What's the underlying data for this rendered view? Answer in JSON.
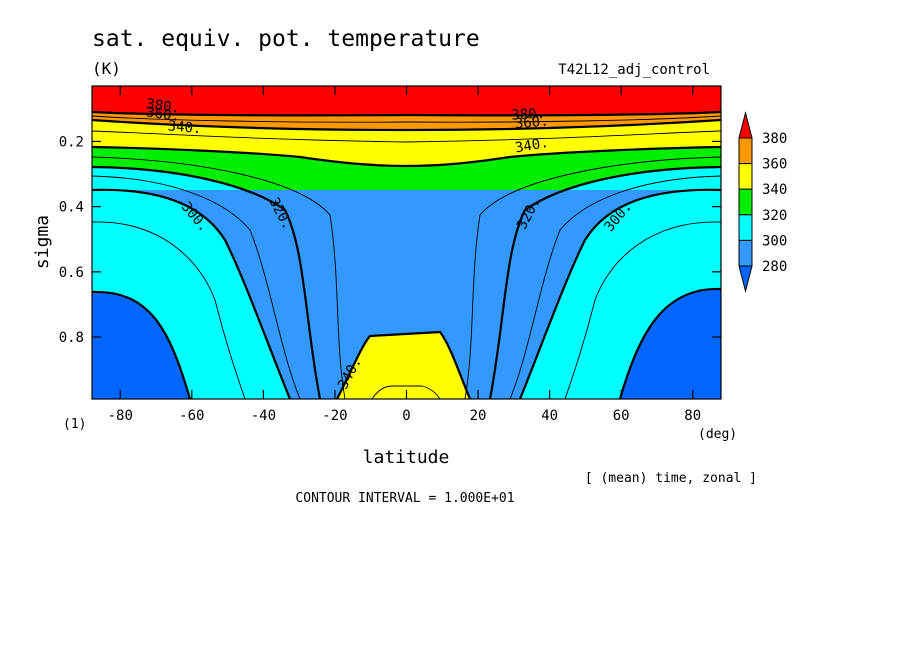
{
  "chart_data": {
    "type": "heatmap",
    "title": "sat. equiv. pot. temperature",
    "units": "(K)",
    "experiment": "T42L12_adj_control",
    "xlabel": "latitude",
    "ylabel": "sigma",
    "x_units": "(deg)",
    "y_units": "(1)",
    "averaging_note": "[ (mean) time, zonal ]",
    "contour_interval_text": "CONTOUR INTERVAL = 1.000E+01",
    "xlim": [
      -87.9,
      87.9
    ],
    "ylim": [
      0.03,
      0.99
    ],
    "y_inverted": true,
    "x_ticks": [
      -80,
      -60,
      -40,
      -20,
      0,
      20,
      40,
      60,
      80
    ],
    "x_tick_labels": [
      "-80",
      "-60",
      "-40",
      "-20",
      "0",
      "20",
      "40",
      "60",
      "80"
    ],
    "y_ticks": [
      0.2,
      0.4,
      0.6,
      0.8
    ],
    "y_tick_labels": [
      "0.2",
      "0.4",
      "0.6",
      "0.8"
    ],
    "levels": [
      280,
      300,
      320,
      340,
      360,
      380
    ],
    "colorbar": {
      "labels": [
        "380",
        "360",
        "340",
        "320",
        "300",
        "280"
      ],
      "colors": [
        "#ff0000",
        "#ff9900",
        "#ffff00",
        "#00ee00",
        "#00ffff",
        "#3399ff",
        "#0066ff"
      ]
    },
    "contour_labels": [
      {
        "text": "380",
        "x": -68,
        "y": 0.09,
        "angle": 8
      },
      {
        "text": "360",
        "x": -68,
        "y": 0.115,
        "angle": 8
      },
      {
        "text": "340",
        "x": -62,
        "y": 0.155,
        "angle": 5
      },
      {
        "text": "380",
        "x": 34,
        "y": 0.115,
        "angle": -3
      },
      {
        "text": "360",
        "x": 35,
        "y": 0.14,
        "angle": -5
      },
      {
        "text": "340",
        "x": 35,
        "y": 0.21,
        "angle": -10
      },
      {
        "text": "300",
        "x": -59,
        "y": 0.43,
        "angle": 50
      },
      {
        "text": "320",
        "x": -35,
        "y": 0.42,
        "angle": 62
      },
      {
        "text": "320",
        "x": 34,
        "y": 0.42,
        "angle": -62
      },
      {
        "text": "300",
        "x": 59,
        "y": 0.43,
        "angle": -50
      },
      {
        "text": "340",
        "x": -16,
        "y": 0.91,
        "angle": -62
      }
    ]
  }
}
